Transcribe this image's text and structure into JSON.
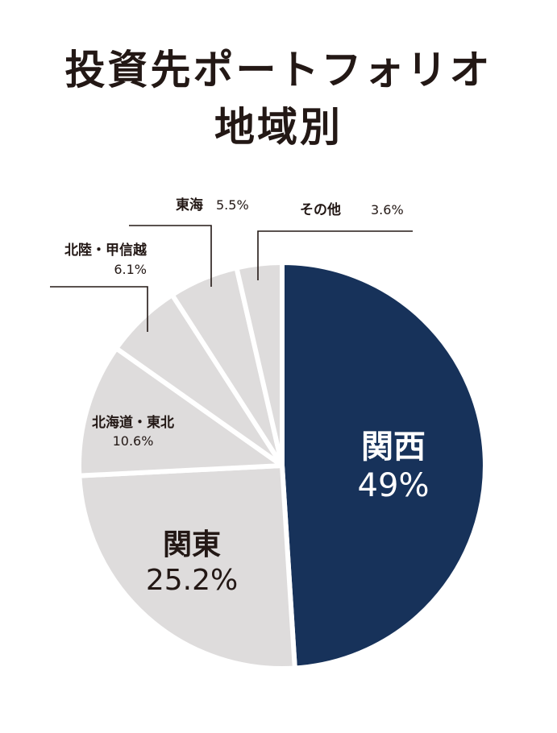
{
  "title_line1": "投資先ポートフォリオ",
  "title_line2": "地域別",
  "colors": {
    "kansai": "#17325a",
    "other": "#dedcdc",
    "ink": "#231815"
  },
  "chart_data": {
    "type": "pie",
    "title": "投資先ポートフォリオ 地域別",
    "unit": "%",
    "slices": [
      {
        "key": "kansai",
        "label": "関西",
        "value": 49,
        "value_label": "49%"
      },
      {
        "key": "kanto",
        "label": "関東",
        "value": 25.2,
        "value_label": "25.2%"
      },
      {
        "key": "hokkaido",
        "label": "北海道・東北",
        "value": 10.6,
        "value_label": "10.6%"
      },
      {
        "key": "hokuriku",
        "label": "北陸・甲信越",
        "value": 6.1,
        "value_label": "6.1%"
      },
      {
        "key": "tokai",
        "label": "東海",
        "value": 5.5,
        "value_label": "5.5%"
      },
      {
        "key": "other",
        "label": "その他",
        "value": 3.6,
        "value_label": "3.6%"
      }
    ]
  }
}
